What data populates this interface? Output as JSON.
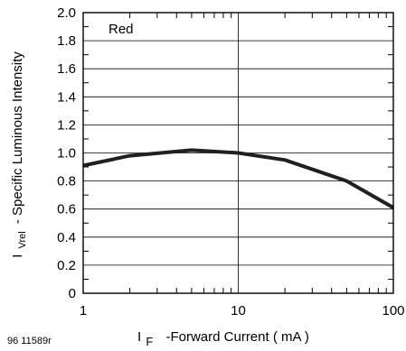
{
  "chart_data": {
    "type": "line",
    "x_scale": "log",
    "xlim": [
      1,
      100
    ],
    "ylim": [
      0,
      2.0
    ],
    "x_ticks": [
      {
        "value": 1,
        "label": "1"
      },
      {
        "value": 10,
        "label": "10"
      },
      {
        "value": 100,
        "label": "100"
      }
    ],
    "y_ticks": [
      {
        "value": 0,
        "label": "0"
      },
      {
        "value": 0.2,
        "label": "0.2"
      },
      {
        "value": 0.4,
        "label": "0.4"
      },
      {
        "value": 0.6,
        "label": "0.6"
      },
      {
        "value": 0.8,
        "label": "0.8"
      },
      {
        "value": 1.0,
        "label": "1.0"
      },
      {
        "value": 1.2,
        "label": "1.2"
      },
      {
        "value": 1.4,
        "label": "1.4"
      },
      {
        "value": 1.6,
        "label": "1.6"
      },
      {
        "value": 1.8,
        "label": "1.8"
      },
      {
        "value": 2.0,
        "label": "2.0"
      }
    ],
    "xlabel": {
      "symbol": "I",
      "subscript": "F",
      "text": "-Forward Current ( mA )"
    },
    "ylabel": {
      "symbol": "I",
      "subscript": "Vrel",
      "text": "- Specific Luminous Intensity"
    },
    "annotation": "Red",
    "series": [
      {
        "x": [
          1,
          2,
          5,
          10,
          20,
          50,
          100
        ],
        "y": [
          0.91,
          0.98,
          1.02,
          1.0,
          0.95,
          0.8,
          0.61
        ]
      }
    ],
    "grid": {
      "major_x": true,
      "major_y": true,
      "minor": false
    },
    "colors": {
      "line": "#231f20",
      "axis": "#000000"
    }
  },
  "figure_code": "96 11589r"
}
